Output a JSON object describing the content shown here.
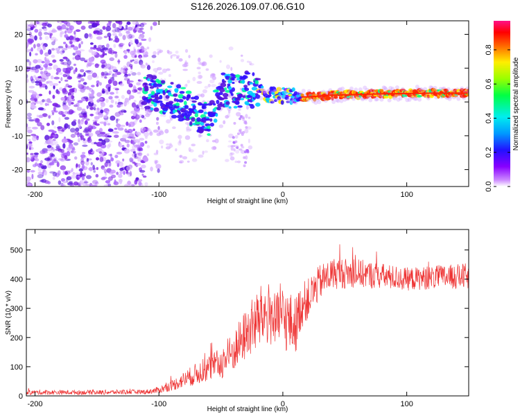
{
  "title": "S126.2026.109.07.06.G10",
  "chart_data": [
    {
      "type": "heatmap",
      "name": "spectrogram",
      "xlabel": "Height of straight line (km)",
      "ylabel": "Frequency (Hz)",
      "xlim": [
        -207,
        150
      ],
      "ylim": [
        -25,
        24
      ],
      "xticks": [
        -200,
        -100,
        0,
        100
      ],
      "xtick_labels": [
        "-200",
        "-100",
        "0",
        "100"
      ],
      "yticks": [
        -20,
        -10,
        0,
        10,
        20
      ],
      "ytick_labels": [
        "-20",
        "-10",
        "0",
        "10",
        "20"
      ],
      "colorbar": {
        "label": "Normalized spectral amplitude",
        "range": [
          0,
          0.97
        ],
        "ticks": [
          0.0,
          0.2,
          0.4,
          0.6,
          0.8
        ],
        "tick_labels": [
          "0.0",
          "0.2",
          "0.4",
          "0.6",
          "0.8"
        ],
        "colormap": [
          "#ffffff",
          "#8800ff",
          "#3311ff",
          "#0066ff",
          "#00ddff",
          "#00ff88",
          "#66ff00",
          "#ffee00",
          "#ff7700",
          "#ff0000",
          "#ff00aa"
        ]
      },
      "ridge": {
        "x": [
          -110,
          -100,
          -90,
          -80,
          -70,
          -60,
          -55,
          -50,
          -40,
          -30,
          -20,
          -10,
          0,
          10,
          20,
          40,
          60,
          80,
          100,
          120,
          150
        ],
        "y": [
          3,
          2,
          1,
          -1,
          -3,
          -6,
          -2,
          4,
          3,
          4,
          3,
          2,
          2,
          1.5,
          1.5,
          2,
          2.2,
          2.4,
          2.5,
          2.6,
          2.6
        ]
      }
    },
    {
      "type": "line",
      "name": "snr",
      "xlabel": "Height of straight line (km)",
      "ylabel": "SNR (10 * v/v)",
      "xlim": [
        -207,
        150
      ],
      "ylim": [
        0,
        570
      ],
      "xticks": [
        -200,
        -100,
        0,
        100
      ],
      "xtick_labels": [
        "-200",
        "-100",
        "0",
        "100"
      ],
      "yticks": [
        0,
        100,
        200,
        300,
        400,
        500
      ],
      "ytick_labels": [
        "0",
        "100",
        "200",
        "300",
        "400",
        "500"
      ],
      "color": "#ee3333",
      "envelope": {
        "x": [
          -207,
          -150,
          -110,
          -100,
          -90,
          -80,
          -70,
          -60,
          -50,
          -40,
          -30,
          -20,
          -15,
          -10,
          -5,
          0,
          5,
          10,
          15,
          20,
          30,
          40,
          60,
          80,
          100,
          120,
          150
        ],
        "mean": [
          12,
          12,
          14,
          20,
          35,
          55,
          75,
          95,
          110,
          150,
          210,
          260,
          280,
          280,
          250,
          270,
          250,
          240,
          310,
          330,
          390,
          420,
          420,
          410,
          400,
          405,
          410
        ],
        "spread": [
          8,
          8,
          8,
          12,
          18,
          28,
          38,
          45,
          55,
          70,
          90,
          110,
          110,
          110,
          100,
          110,
          110,
          100,
          80,
          70,
          60,
          55,
          50,
          45,
          40,
          40,
          45
        ]
      }
    }
  ]
}
